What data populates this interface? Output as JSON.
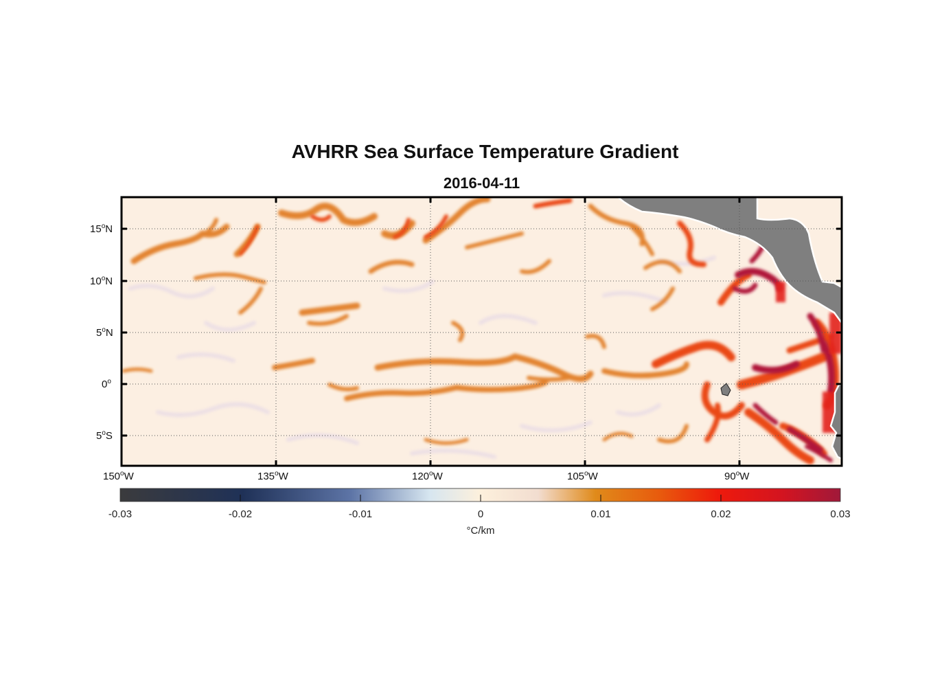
{
  "title": "AVHRR Sea Surface Temperature Gradient",
  "subtitle": "2016-04-11",
  "map": {
    "lon_range": [
      "150W",
      "83W"
    ],
    "lat_range": [
      "8S",
      "18N"
    ],
    "grid": true,
    "land_color": "#7f7f7f",
    "lat_ticks": [
      {
        "deg": "15",
        "hem": "N"
      },
      {
        "deg": "10",
        "hem": "N"
      },
      {
        "deg": "5",
        "hem": "N"
      },
      {
        "deg": "0",
        "hem": ""
      },
      {
        "deg": "5",
        "hem": "S"
      }
    ],
    "lon_ticks": [
      {
        "deg": "150",
        "hem": "W"
      },
      {
        "deg": "135",
        "hem": "W"
      },
      {
        "deg": "120",
        "hem": "W"
      },
      {
        "deg": "105",
        "hem": "W"
      },
      {
        "deg": "90",
        "hem": "W"
      }
    ]
  },
  "colorbar": {
    "min": -0.03,
    "max": 0.03,
    "ticks": [
      "-0.03",
      "-0.02",
      "-0.01",
      "0",
      "0.01",
      "0.02",
      "0.03"
    ],
    "unit": "°C/km",
    "colors": [
      "#3b3b3d",
      "#1f3157",
      "#7289b8",
      "#d7e6f0",
      "#fdf0dc",
      "#f2ddd0",
      "#e08a1a",
      "#e85a0d",
      "#ee1a0c",
      "#d31420",
      "#a0193a"
    ]
  }
}
